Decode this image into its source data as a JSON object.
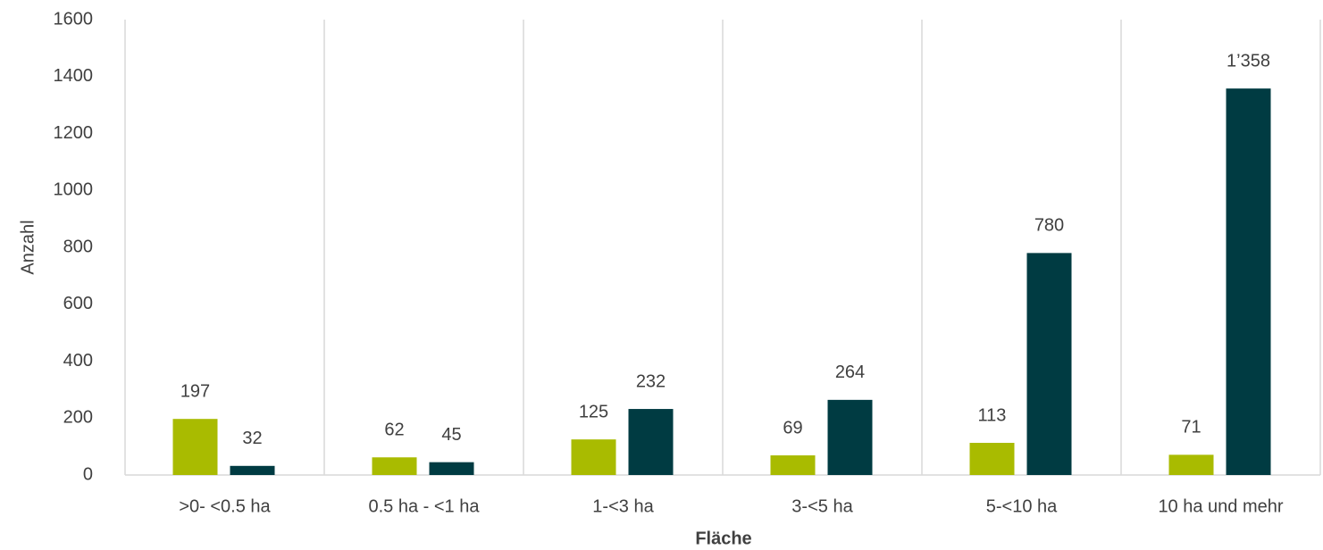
{
  "chart_data": {
    "type": "bar",
    "x_label": "Fläche",
    "y_label": "Anzahl",
    "categories": [
      ">0- <0.5 ha",
      "0.5 ha - <1 ha",
      "1-<3 ha",
      "3-<5 ha",
      "5-<10 ha",
      "10 ha und mehr"
    ],
    "series": [
      {
        "color": "#a9bb00",
        "values": [
          197,
          62,
          125,
          69,
          113,
          71
        ]
      },
      {
        "color": "#003b42",
        "values": [
          32,
          45,
          232,
          264,
          780,
          1358
        ],
        "value_labels": [
          "32",
          "45",
          "232",
          "264",
          "780",
          "1’358"
        ]
      }
    ],
    "ylim": [
      0,
      1600
    ],
    "yticks": [
      0,
      200,
      400,
      600,
      800,
      1000,
      1200,
      1400,
      1600
    ],
    "grid": false
  }
}
